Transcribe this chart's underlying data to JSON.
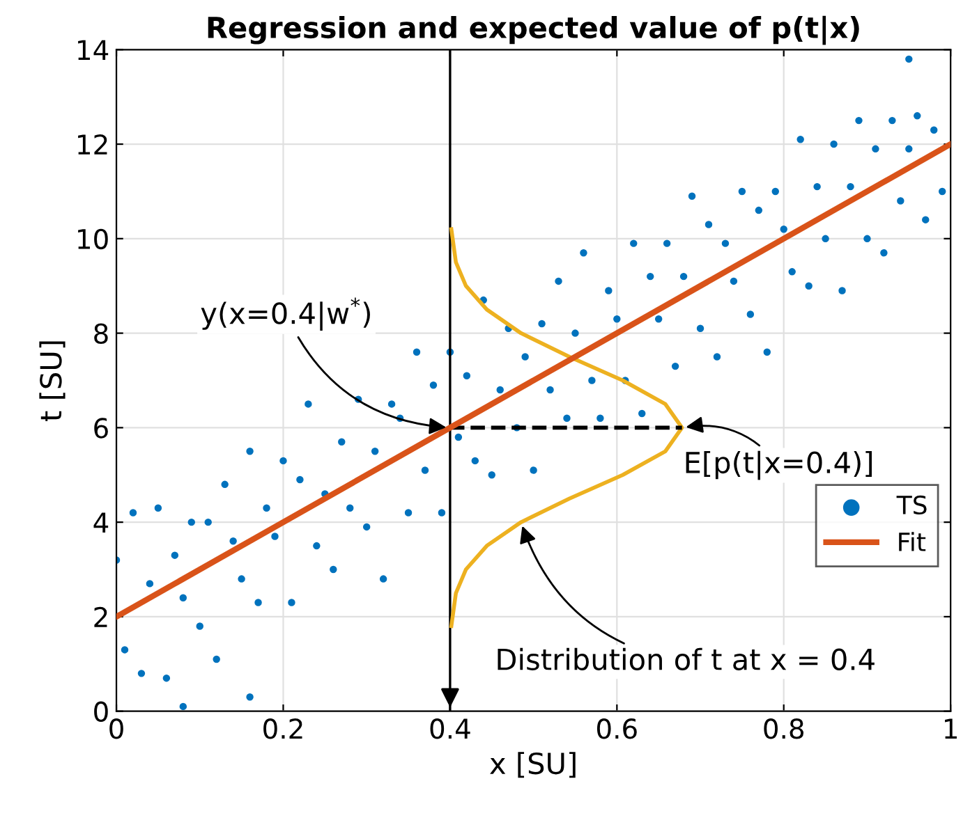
{
  "chart_data": {
    "type": "scatter",
    "title": "Regression and expected value of p(t|x)",
    "xlabel": "x [SU]",
    "ylabel": "t [SU]",
    "xlim": [
      0,
      1
    ],
    "ylim": [
      0,
      14
    ],
    "xticks": [
      0,
      0.2,
      0.4,
      0.6,
      0.8,
      1
    ],
    "yticks": [
      0,
      2,
      4,
      6,
      8,
      10,
      12,
      14
    ],
    "grid": true,
    "legend": "lower right",
    "series": [
      {
        "name": "TS",
        "color": "#0072bd",
        "marker": "circle",
        "x": [
          0,
          0.01,
          0.02,
          0.03,
          0.04,
          0.05,
          0.06,
          0.07,
          0.08,
          0.09,
          0.1,
          0.11,
          0.12,
          0.13,
          0.14,
          0.15,
          0.16,
          0.17,
          0.18,
          0.19,
          0.2,
          0.21,
          0.22,
          0.23,
          0.24,
          0.25,
          0.26,
          0.27,
          0.28,
          0.29,
          0.3,
          0.31,
          0.32,
          0.33,
          0.34,
          0.35,
          0.36,
          0.37,
          0.38,
          0.39,
          0.4,
          0.41,
          0.42,
          0.43,
          0.44,
          0.45,
          0.46,
          0.47,
          0.48,
          0.49,
          0.5,
          0.51,
          0.52,
          0.53,
          0.54,
          0.55,
          0.56,
          0.57,
          0.58,
          0.59,
          0.6,
          0.61,
          0.62,
          0.63,
          0.64,
          0.65,
          0.66,
          0.67,
          0.68,
          0.69,
          0.7,
          0.71,
          0.72,
          0.73,
          0.74,
          0.75,
          0.76,
          0.77,
          0.78,
          0.79,
          0.8,
          0.81,
          0.82,
          0.83,
          0.84,
          0.85,
          0.86,
          0.87,
          0.88,
          0.89,
          0.9,
          0.91,
          0.92,
          0.93,
          0.94,
          0.95,
          0.96,
          0.97,
          0.98,
          0.99,
          0.16,
          0.08,
          0.95
        ],
        "values": [
          3.2,
          1.3,
          4.2,
          0.8,
          2.7,
          4.3,
          0.7,
          3.3,
          2.4,
          4.0,
          1.8,
          4.0,
          1.1,
          4.8,
          3.6,
          2.8,
          5.5,
          2.3,
          4.3,
          3.7,
          5.3,
          2.3,
          4.9,
          6.5,
          3.5,
          4.6,
          3.0,
          5.7,
          4.3,
          6.6,
          3.9,
          5.5,
          2.8,
          6.5,
          6.2,
          4.2,
          7.6,
          5.1,
          6.9,
          4.2,
          7.6,
          5.8,
          7.1,
          5.3,
          8.7,
          5.0,
          6.8,
          8.1,
          6.0,
          7.5,
          5.1,
          8.2,
          6.8,
          9.1,
          6.2,
          8.0,
          9.7,
          7.0,
          6.2,
          8.9,
          8.3,
          7.0,
          9.9,
          6.3,
          9.2,
          8.3,
          9.9,
          7.3,
          9.2,
          10.9,
          8.1,
          10.3,
          7.5,
          9.9,
          9.1,
          11.0,
          8.4,
          10.6,
          7.6,
          11.0,
          10.2,
          9.3,
          12.1,
          9.0,
          11.1,
          10.0,
          12.0,
          8.9,
          11.1,
          12.5,
          10.0,
          11.9,
          9.7,
          12.5,
          10.8,
          11.9,
          12.6,
          10.4,
          12.3,
          11.0,
          0.3,
          0.1,
          13.8
        ]
      },
      {
        "name": "Fit",
        "type": "line",
        "color": "#d95319",
        "x": [
          0,
          1
        ],
        "values": [
          2,
          12
        ]
      },
      {
        "type": "line",
        "color": "#edb120",
        "x": [
          0.4015,
          0.407,
          0.419,
          0.444,
          0.485,
          0.543,
          0.607,
          0.658,
          0.678,
          0.658,
          0.607,
          0.543,
          0.485,
          0.444,
          0.419,
          0.407,
          0.4015
        ],
        "values": [
          1.8,
          2.5,
          3,
          3.5,
          4,
          4.5,
          5,
          5.5,
          6,
          6.5,
          7,
          7.5,
          8,
          8.5,
          9,
          9.5,
          10.2
        ]
      },
      {
        "type": "line",
        "color": "#000000",
        "line_style": "dashed",
        "x": [
          0.4,
          0.678
        ],
        "values": [
          6,
          6
        ]
      }
    ],
    "ref_lines": [
      {
        "axis": "x",
        "value": 0.4,
        "color": "#000000"
      }
    ],
    "annotations": [
      {
        "text": "y(x=0.4|w$^{*}$)",
        "x": 0.4,
        "y": 6
      },
      {
        "text": "E[p(t|x=0.4)]",
        "x": 0.678,
        "y": 6
      },
      {
        "text": "Distribution of t at x = 0.4",
        "x": 0.485,
        "y": 4
      }
    ]
  }
}
